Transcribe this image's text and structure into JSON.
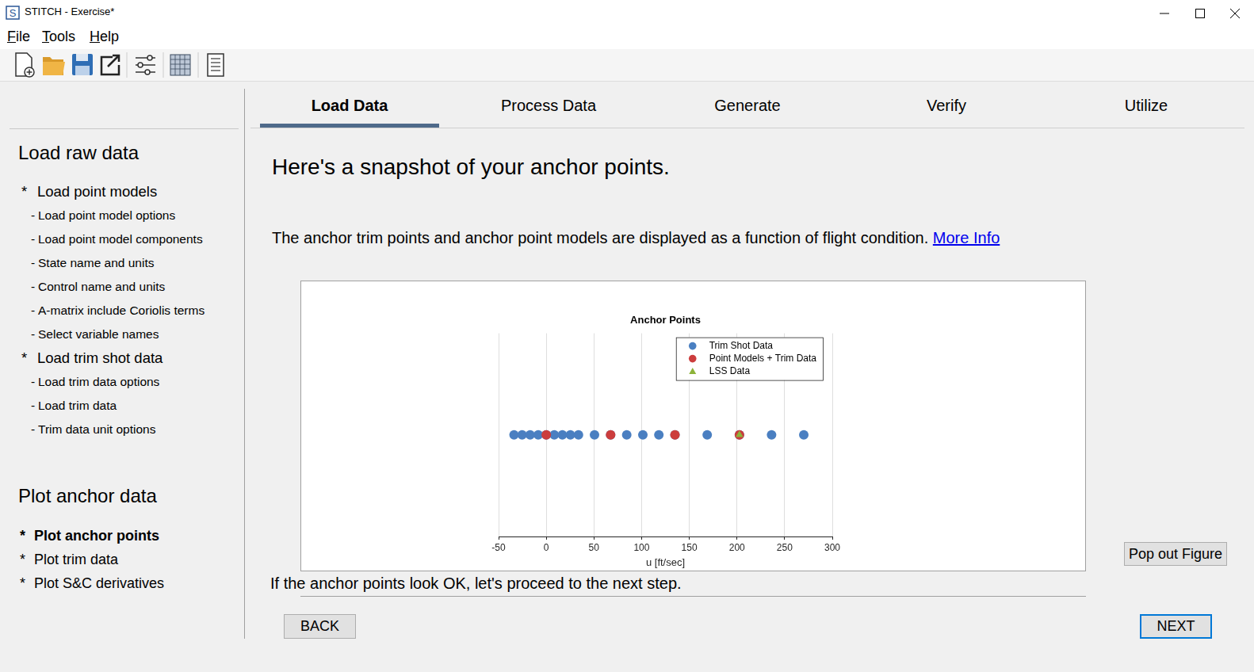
{
  "window": {
    "title": "STITCH - Exercise*"
  },
  "menu": [
    "File",
    "Tools",
    "Help"
  ],
  "tabs": {
    "items": [
      "Load Data",
      "Process Data",
      "Generate",
      "Verify",
      "Utilize"
    ],
    "active": "Load Data"
  },
  "sidebar": {
    "sections": [
      {
        "title": "Load raw data",
        "items": [
          {
            "marker": "*",
            "text": "Load point models"
          },
          {
            "marker": "-",
            "text": "Load point model options"
          },
          {
            "marker": "-",
            "text": "Load point model components"
          },
          {
            "marker": "-",
            "text": "State name and units"
          },
          {
            "marker": "-",
            "text": "Control name and units"
          },
          {
            "marker": "-",
            "text": "A-matrix include Coriolis terms"
          },
          {
            "marker": "-",
            "text": "Select variable names"
          },
          {
            "marker": "*",
            "text": "Load trim shot data"
          },
          {
            "marker": "-",
            "text": "Load trim data options"
          },
          {
            "marker": "-",
            "text": "Load trim data"
          },
          {
            "marker": "-",
            "text": "Trim data unit options"
          }
        ]
      },
      {
        "title": "Plot anchor data",
        "active_item": "Plot anchor points",
        "items": [
          {
            "marker": "*",
            "text": "Plot anchor points"
          },
          {
            "marker": "*",
            "text": "Plot trim data"
          },
          {
            "marker": "*",
            "text": "Plot S&C derivatives"
          }
        ]
      }
    ]
  },
  "heading": "Here's a snapshot of your anchor points.",
  "intro": {
    "text": "The anchor trim points and anchor point models are displayed as a function of flight condition.",
    "link": "More Info"
  },
  "chart_data": {
    "type": "scatter",
    "title": "Anchor Points",
    "xlabel": "u [ft/sec]",
    "xlim": [
      -50,
      300
    ],
    "xticks": [
      -50,
      0,
      50,
      100,
      150,
      200,
      250,
      300
    ],
    "ylim": [
      -1,
      1
    ],
    "tick_labels": "x",
    "grid": true,
    "legend": "northeast",
    "series": [
      {
        "name": "Trim Shot Data",
        "color": "#4a7fc1",
        "marker": "circle",
        "x": [
          -33.8,
          -25.3,
          -16.9,
          -8.4,
          0,
          8.4,
          16.9,
          25.3,
          33.8,
          50.6,
          67.5,
          84.4,
          101.3,
          118.1,
          135,
          168.8,
          202.6,
          236.3,
          270.1
        ],
        "values": [
          0,
          0,
          0,
          0,
          0,
          0,
          0,
          0,
          0,
          0,
          0,
          0,
          0,
          0,
          0,
          0,
          0,
          0,
          0
        ]
      },
      {
        "name": "Point Models + Trim Data",
        "color": "#cc3d3d",
        "marker": "circle",
        "x": [
          0,
          67.5,
          135,
          202.6
        ],
        "values": [
          0,
          0,
          0,
          0
        ]
      },
      {
        "name": "LSS Data",
        "color": "#8db33a",
        "marker": "triangle",
        "x": [
          202.6
        ],
        "values": [
          0
        ]
      }
    ]
  },
  "footer_text": "If the anchor points look OK, let's proceed to the next step.",
  "buttons": {
    "pop_out": "Pop out Figure",
    "back": "BACK",
    "next": "NEXT"
  }
}
